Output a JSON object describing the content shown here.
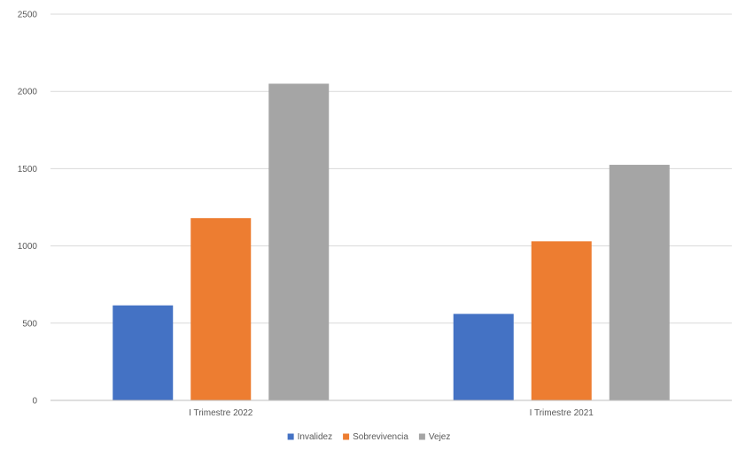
{
  "chart_data": {
    "type": "bar",
    "categories": [
      "I Trimestre 2022",
      "I Trimestre 2021"
    ],
    "series": [
      {
        "name": "Invalidez",
        "values": [
          615,
          560
        ],
        "color": "#4472c4"
      },
      {
        "name": "Sobrevivencia",
        "values": [
          1180,
          1030
        ],
        "color": "#ed7d31"
      },
      {
        "name": "Vejez",
        "values": [
          2050,
          1525
        ],
        "color": "#a5a5a5"
      }
    ],
    "yticks": [
      "0",
      "500",
      "1000",
      "1500",
      "2000",
      "2500"
    ],
    "ylim": [
      0,
      2500
    ],
    "grid": true,
    "legend_position": "bottom"
  }
}
